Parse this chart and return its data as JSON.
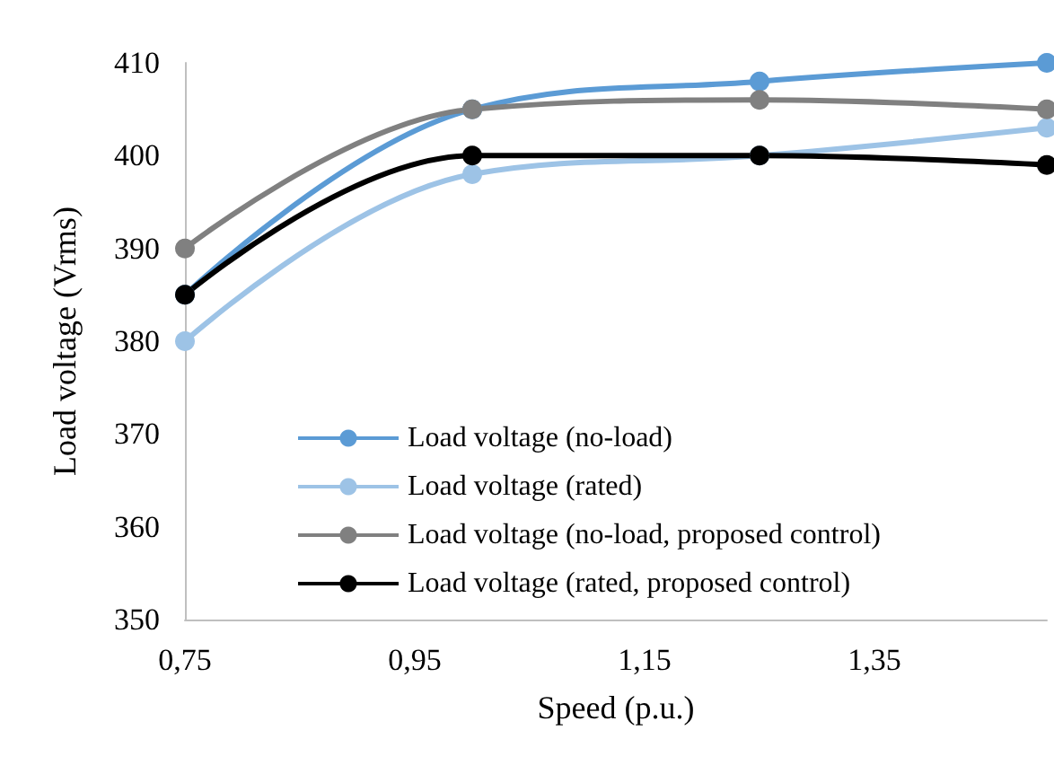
{
  "chart_data": {
    "type": "line",
    "xlabel": "Speed (p.u.)",
    "ylabel": "Load voltage (Vrms)",
    "x": [
      0.75,
      1.0,
      1.25,
      1.5
    ],
    "series": [
      {
        "name": "Load voltage (no-load)",
        "color": "#5b9bd5",
        "values": [
          385,
          405,
          408,
          410
        ]
      },
      {
        "name": "Load voltage (rated)",
        "color": "#9dc3e6",
        "values": [
          380,
          398,
          400,
          403
        ]
      },
      {
        "name": "Load voltage (no-load, proposed control)",
        "color": "#808080",
        "values": [
          390,
          405,
          406,
          405
        ]
      },
      {
        "name": "Load voltage (rated, proposed control)",
        "color": "#000000",
        "values": [
          385,
          400,
          400,
          399
        ]
      }
    ],
    "xlim": [
      0.75,
      1.5
    ],
    "xticks": [
      {
        "value": 0.75,
        "label": "0,75"
      },
      {
        "value": 0.95,
        "label": "0,95"
      },
      {
        "value": 1.15,
        "label": "1,15"
      },
      {
        "value": 1.35,
        "label": "1,35"
      }
    ],
    "ylim": [
      350,
      410
    ],
    "yticks": [
      350,
      360,
      370,
      380,
      390,
      400,
      410
    ],
    "grid": false,
    "legend": "bottom",
    "marker": "circle",
    "line_style": "solid"
  }
}
